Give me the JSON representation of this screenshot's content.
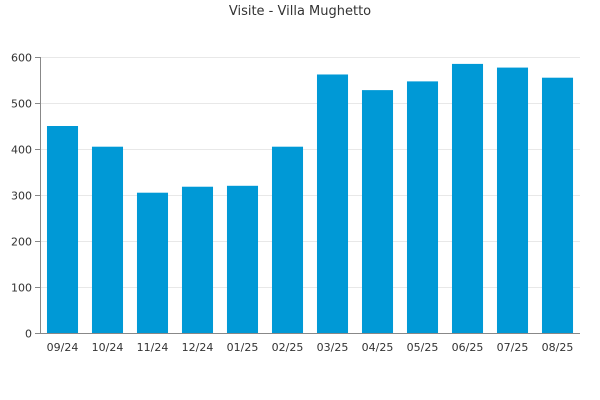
{
  "chart_data": {
    "type": "bar",
    "title": "Visite - Villa Mughetto",
    "xlabel": "",
    "ylabel": "",
    "categories": [
      "09/24",
      "10/24",
      "11/24",
      "12/24",
      "01/25",
      "02/25",
      "03/25",
      "04/25",
      "05/25",
      "06/25",
      "07/25",
      "08/25"
    ],
    "values": [
      450,
      405,
      305,
      318,
      320,
      405,
      562,
      528,
      547,
      585,
      577,
      555
    ],
    "ylim": [
      0,
      600
    ],
    "yticks": [
      0,
      100,
      200,
      300,
      400,
      500,
      600
    ],
    "grid": true,
    "legend": "none",
    "bar_color": "#0099d6",
    "grid_color": "#e8e8e8",
    "axis_color": "#888888"
  }
}
